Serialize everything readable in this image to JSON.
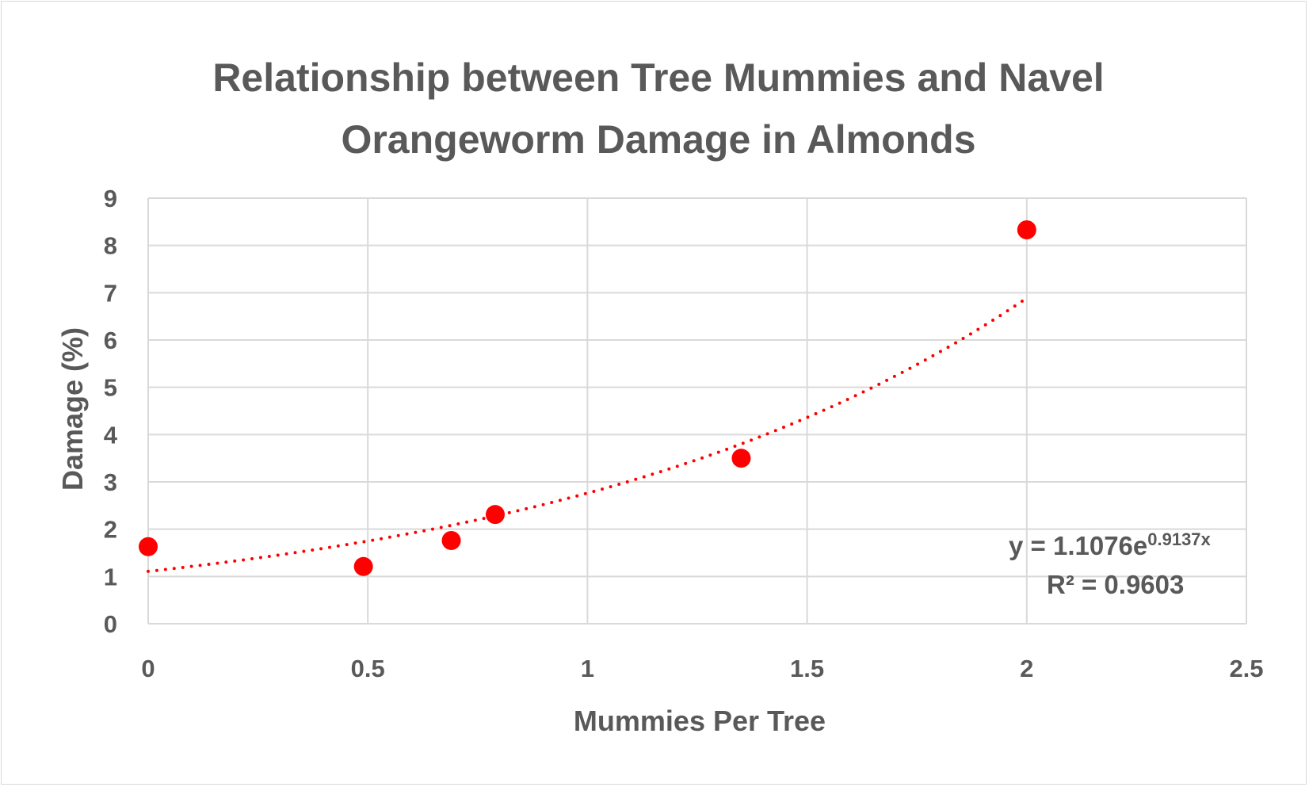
{
  "chart_data": {
    "type": "scatter",
    "title_lines": [
      "Relationship between Tree Mummies and Navel",
      "Orangeworm Damage in Almonds"
    ],
    "xlabel": "Mummies Per Tree",
    "ylabel": "Damage (%)",
    "xlim": [
      0,
      2.5
    ],
    "ylim": [
      0,
      9
    ],
    "x_ticks": [
      "0",
      "0.5",
      "1",
      "1.5",
      "2",
      "2.5"
    ],
    "y_ticks": [
      "0",
      "1",
      "2",
      "3",
      "4",
      "5",
      "6",
      "7",
      "8",
      "9"
    ],
    "x_tick_values": [
      0,
      0.5,
      1,
      1.5,
      2,
      2.5
    ],
    "y_tick_values": [
      0,
      1,
      2,
      3,
      4,
      5,
      6,
      7,
      8,
      9
    ],
    "grid": true,
    "legend": "none",
    "points": [
      {
        "x": 0,
        "y": 1.63
      },
      {
        "x": 0.49,
        "y": 1.21
      },
      {
        "x": 0.69,
        "y": 1.76
      },
      {
        "x": 0.79,
        "y": 2.31
      },
      {
        "x": 1.35,
        "y": 3.5
      },
      {
        "x": 2.0,
        "y": 8.33
      }
    ],
    "trendline": {
      "type": "exponential",
      "a": 1.1076,
      "b": 0.9137,
      "x_range": [
        0,
        2
      ],
      "style": "dotted",
      "equation_base": "y = 1.1076e",
      "equation_exponent": "0.9137x",
      "r_squared_label": "R² = 0.9603"
    },
    "colors": {
      "points": "#ff0000",
      "trendline": "#ff0000",
      "text": "#595959",
      "grid": "#d9d9d9"
    }
  }
}
